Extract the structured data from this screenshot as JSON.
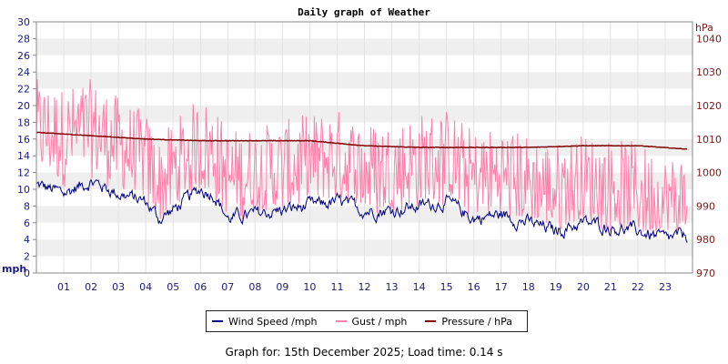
{
  "chart_data": {
    "type": "line",
    "title": "Daily graph of Weather",
    "left_axis": {
      "unit_label": "mph",
      "ylim": [
        0,
        30
      ],
      "ticks": [
        0,
        2,
        4,
        6,
        8,
        10,
        12,
        14,
        16,
        18,
        20,
        22,
        24,
        26,
        28,
        30
      ]
    },
    "right_axis": {
      "unit_label": "hPa",
      "ylim": [
        970,
        1045
      ],
      "ticks": [
        970,
        980,
        990,
        1000,
        1010,
        1020,
        1030,
        1040
      ]
    },
    "x_axis": {
      "range_hours": [
        0,
        24
      ],
      "tick_labels": [
        "01",
        "02",
        "03",
        "04",
        "05",
        "06",
        "07",
        "08",
        "09",
        "10",
        "11",
        "12",
        "13",
        "14",
        "15",
        "16",
        "17",
        "18",
        "19",
        "20",
        "21",
        "22",
        "23"
      ]
    },
    "grid": true,
    "legend_placement": "bottom",
    "series": [
      {
        "name": "Wind Speed /mph",
        "color": "#000080",
        "axis": "left",
        "x": [
          0,
          1,
          2,
          3,
          4,
          4.5,
          5,
          6,
          6.5,
          7,
          8,
          9,
          10,
          11,
          12,
          13,
          14,
          15,
          16,
          17,
          18,
          19,
          20,
          21,
          22,
          23,
          23.8
        ],
        "values": [
          10.5,
          9.5,
          11,
          9.5,
          8.5,
          6.5,
          7.5,
          10,
          9.5,
          6.5,
          7,
          7.5,
          8,
          8.5,
          7.5,
          7.5,
          8,
          8.5,
          6.5,
          7,
          6,
          5,
          6,
          5.5,
          5,
          4,
          4.5
        ]
      },
      {
        "name": "Gust / mph",
        "color": "#ff80aa",
        "axis": "left",
        "x": [
          0,
          1,
          2,
          3,
          4,
          4.5,
          5,
          6,
          6.5,
          7,
          8,
          9,
          10,
          11,
          12,
          13,
          14,
          15,
          16,
          17,
          18,
          19,
          20,
          21,
          22,
          23,
          23.8
        ],
        "values": [
          16,
          15,
          16,
          14,
          12,
          9,
          11,
          14,
          13,
          10,
          10.5,
          11,
          12,
          12.5,
          11,
          11,
          12,
          12.5,
          10,
          10.5,
          9.5,
          8.5,
          9.5,
          9,
          8.5,
          7,
          7.5
        ]
      },
      {
        "name": "Pressure / hPa",
        "color": "#800000",
        "axis": "right",
        "x": [
          0,
          2,
          4,
          6,
          8,
          10,
          12,
          14,
          16,
          18,
          20,
          22,
          23.8
        ],
        "values": [
          1012,
          1011,
          1010,
          1009.5,
          1009.5,
          1009.5,
          1008,
          1007.5,
          1007.5,
          1007.5,
          1008,
          1008,
          1007
        ]
      }
    ]
  },
  "footer": {
    "text": "Graph for: 15th December 2025; Load time: 0.14 s"
  }
}
